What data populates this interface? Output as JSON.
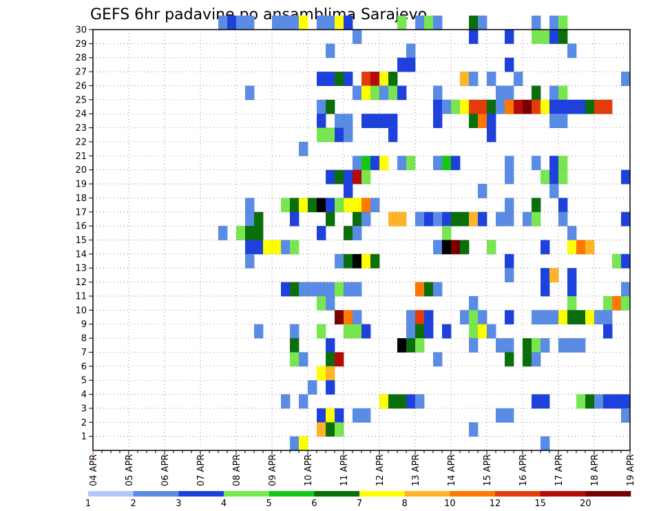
{
  "chart_data": {
    "type": "heatmap",
    "title": "GEFS 6hr padavine po ansamblima Sarajevo",
    "x_ticks": [
      "04 APR",
      "05 APR",
      "06 APR",
      "07 APR",
      "08 APR",
      "09 APR",
      "10 APR",
      "11 APR",
      "12 APR",
      "13 APR",
      "14 APR",
      "15 APR",
      "16 APR",
      "17 APR",
      "18 APR",
      "19 APR"
    ],
    "y_ticks": [
      1,
      2,
      3,
      4,
      5,
      6,
      7,
      8,
      9,
      10,
      11,
      12,
      13,
      14,
      15,
      16,
      17,
      18,
      19,
      20,
      21,
      22,
      23,
      24,
      25,
      26,
      27,
      28,
      29,
      30
    ],
    "xlim": [
      0,
      60
    ],
    "ylim": [
      0,
      30
    ],
    "x_time_step": "6hr",
    "grid": true,
    "legend": {
      "position": "bottom",
      "labels": [
        "1",
        "2",
        "3",
        "4",
        "5",
        "6",
        "7",
        "8",
        "10",
        "12",
        "15",
        "20"
      ],
      "colors": [
        "#b4c8f5",
        "#5a8ce6",
        "#1e41dc",
        "#78e650",
        "#14c814",
        "#0a6e0a",
        "#ffff00",
        "#ffb428",
        "#ff7800",
        "#e13c0a",
        "#b40a0a",
        "#780000"
      ]
    },
    "cells": [
      [
        30,
        14,
        1
      ],
      [
        30,
        15,
        2
      ],
      [
        30,
        16,
        1
      ],
      [
        30,
        17,
        1
      ],
      [
        30,
        20,
        1
      ],
      [
        30,
        21,
        1
      ],
      [
        30,
        22,
        1
      ],
      [
        30,
        23,
        6
      ],
      [
        30,
        25,
        1
      ],
      [
        30,
        26,
        1
      ],
      [
        30,
        27,
        6
      ],
      [
        30,
        28,
        2
      ],
      [
        30,
        34,
        3
      ],
      [
        30,
        36,
        1
      ],
      [
        30,
        37,
        3
      ],
      [
        30,
        38,
        1
      ],
      [
        30,
        42,
        5
      ],
      [
        30,
        43,
        1
      ],
      [
        30,
        49,
        1
      ],
      [
        30,
        51,
        1
      ],
      [
        30,
        52,
        3
      ],
      [
        29,
        29,
        1
      ],
      [
        29,
        42,
        2
      ],
      [
        29,
        46,
        2
      ],
      [
        29,
        49,
        3
      ],
      [
        29,
        50,
        3
      ],
      [
        29,
        51,
        2
      ],
      [
        29,
        52,
        5
      ],
      [
        28,
        26,
        1
      ],
      [
        28,
        35,
        1
      ],
      [
        28,
        53,
        1
      ],
      [
        27,
        34,
        2
      ],
      [
        27,
        35,
        2
      ],
      [
        27,
        46,
        2
      ],
      [
        26,
        25,
        2
      ],
      [
        26,
        26,
        2
      ],
      [
        26,
        27,
        5
      ],
      [
        26,
        28,
        2
      ],
      [
        26,
        30,
        9
      ],
      [
        26,
        31,
        10
      ],
      [
        26,
        32,
        6
      ],
      [
        26,
        33,
        5
      ],
      [
        26,
        41,
        7
      ],
      [
        26,
        42,
        1
      ],
      [
        26,
        44,
        1
      ],
      [
        26,
        47,
        1
      ],
      [
        26,
        59,
        1
      ],
      [
        25,
        17,
        1
      ],
      [
        25,
        29,
        1
      ],
      [
        25,
        30,
        6
      ],
      [
        25,
        31,
        3
      ],
      [
        25,
        32,
        1
      ],
      [
        25,
        33,
        3
      ],
      [
        25,
        34,
        2
      ],
      [
        25,
        38,
        1
      ],
      [
        25,
        45,
        1
      ],
      [
        25,
        46,
        1
      ],
      [
        25,
        49,
        5
      ],
      [
        25,
        51,
        1
      ],
      [
        25,
        52,
        3
      ],
      [
        24,
        25,
        1
      ],
      [
        24,
        26,
        5
      ],
      [
        24,
        38,
        2
      ],
      [
        24,
        39,
        1
      ],
      [
        24,
        40,
        3
      ],
      [
        24,
        41,
        6
      ],
      [
        24,
        42,
        9
      ],
      [
        24,
        43,
        9
      ],
      [
        24,
        44,
        5
      ],
      [
        24,
        45,
        1
      ],
      [
        24,
        46,
        8
      ],
      [
        24,
        47,
        10
      ],
      [
        24,
        48,
        11
      ],
      [
        24,
        49,
        9
      ],
      [
        24,
        50,
        6
      ],
      [
        24,
        51,
        2
      ],
      [
        24,
        52,
        2
      ],
      [
        24,
        53,
        2
      ],
      [
        24,
        54,
        2
      ],
      [
        24,
        55,
        5
      ],
      [
        24,
        56,
        9
      ],
      [
        24,
        57,
        9
      ],
      [
        23,
        25,
        2
      ],
      [
        23,
        27,
        1
      ],
      [
        23,
        28,
        1
      ],
      [
        23,
        30,
        2
      ],
      [
        23,
        31,
        2
      ],
      [
        23,
        32,
        2
      ],
      [
        23,
        33,
        2
      ],
      [
        23,
        38,
        2
      ],
      [
        23,
        42,
        5
      ],
      [
        23,
        43,
        8
      ],
      [
        23,
        44,
        2
      ],
      [
        23,
        51,
        1
      ],
      [
        23,
        52,
        1
      ],
      [
        22,
        25,
        3
      ],
      [
        22,
        26,
        3
      ],
      [
        22,
        27,
        2
      ],
      [
        22,
        28,
        1
      ],
      [
        22,
        33,
        2
      ],
      [
        22,
        44,
        2
      ],
      [
        21,
        23,
        1
      ],
      [
        20,
        29,
        1
      ],
      [
        20,
        30,
        4
      ],
      [
        20,
        31,
        2
      ],
      [
        20,
        32,
        6
      ],
      [
        20,
        34,
        1
      ],
      [
        20,
        35,
        3
      ],
      [
        20,
        38,
        1
      ],
      [
        20,
        39,
        4
      ],
      [
        20,
        40,
        2
      ],
      [
        20,
        46,
        1
      ],
      [
        20,
        49,
        1
      ],
      [
        20,
        51,
        2
      ],
      [
        20,
        52,
        3
      ],
      [
        19,
        26,
        2
      ],
      [
        19,
        27,
        5
      ],
      [
        19,
        28,
        2
      ],
      [
        19,
        29,
        10
      ],
      [
        19,
        30,
        3
      ],
      [
        19,
        46,
        1
      ],
      [
        19,
        50,
        3
      ],
      [
        19,
        51,
        2
      ],
      [
        19,
        52,
        3
      ],
      [
        19,
        59,
        2
      ],
      [
        18,
        28,
        2
      ],
      [
        18,
        43,
        1
      ],
      [
        18,
        51,
        1
      ],
      [
        17,
        17,
        1
      ],
      [
        17,
        21,
        3
      ],
      [
        17,
        22,
        5
      ],
      [
        17,
        23,
        6
      ],
      [
        17,
        24,
        5
      ],
      [
        17,
        25,
        12
      ],
      [
        17,
        26,
        2
      ],
      [
        17,
        27,
        3
      ],
      [
        17,
        28,
        6
      ],
      [
        17,
        29,
        6
      ],
      [
        17,
        30,
        8
      ],
      [
        17,
        31,
        1
      ],
      [
        17,
        46,
        1
      ],
      [
        17,
        49,
        5
      ],
      [
        17,
        52,
        2
      ],
      [
        16,
        17,
        1
      ],
      [
        16,
        18,
        5
      ],
      [
        16,
        22,
        2
      ],
      [
        16,
        26,
        5
      ],
      [
        16,
        29,
        5
      ],
      [
        16,
        30,
        1
      ],
      [
        16,
        33,
        7
      ],
      [
        16,
        34,
        7
      ],
      [
        16,
        36,
        1
      ],
      [
        16,
        37,
        2
      ],
      [
        16,
        38,
        1
      ],
      [
        16,
        39,
        2
      ],
      [
        16,
        40,
        5
      ],
      [
        16,
        41,
        5
      ],
      [
        16,
        42,
        7
      ],
      [
        16,
        43,
        2
      ],
      [
        16,
        45,
        1
      ],
      [
        16,
        46,
        1
      ],
      [
        16,
        48,
        1
      ],
      [
        16,
        49,
        3
      ],
      [
        16,
        52,
        1
      ],
      [
        16,
        59,
        2
      ],
      [
        15,
        14,
        1
      ],
      [
        15,
        16,
        3
      ],
      [
        15,
        17,
        5
      ],
      [
        15,
        18,
        5
      ],
      [
        15,
        25,
        2
      ],
      [
        15,
        28,
        5
      ],
      [
        15,
        29,
        1
      ],
      [
        15,
        39,
        3
      ],
      [
        15,
        53,
        1
      ],
      [
        14,
        17,
        2
      ],
      [
        14,
        18,
        2
      ],
      [
        14,
        19,
        6
      ],
      [
        14,
        20,
        6
      ],
      [
        14,
        21,
        1
      ],
      [
        14,
        22,
        3
      ],
      [
        14,
        38,
        1
      ],
      [
        14,
        39,
        12
      ],
      [
        14,
        40,
        11
      ],
      [
        14,
        41,
        5
      ],
      [
        14,
        44,
        3
      ],
      [
        14,
        50,
        2
      ],
      [
        14,
        53,
        6
      ],
      [
        14,
        54,
        8
      ],
      [
        14,
        55,
        7
      ],
      [
        13,
        17,
        1
      ],
      [
        13,
        27,
        1
      ],
      [
        13,
        28,
        5
      ],
      [
        13,
        29,
        12
      ],
      [
        13,
        30,
        6
      ],
      [
        13,
        31,
        5
      ],
      [
        13,
        46,
        2
      ],
      [
        13,
        58,
        3
      ],
      [
        13,
        59,
        2
      ],
      [
        12,
        46,
        1
      ],
      [
        12,
        50,
        2
      ],
      [
        12,
        51,
        7
      ],
      [
        12,
        53,
        2
      ],
      [
        11,
        21,
        2
      ],
      [
        11,
        22,
        5
      ],
      [
        11,
        23,
        1
      ],
      [
        11,
        24,
        1
      ],
      [
        11,
        25,
        1
      ],
      [
        11,
        26,
        1
      ],
      [
        11,
        27,
        3
      ],
      [
        11,
        28,
        1
      ],
      [
        11,
        29,
        1
      ],
      [
        11,
        36,
        8
      ],
      [
        11,
        37,
        5
      ],
      [
        11,
        38,
        1
      ],
      [
        11,
        50,
        2
      ],
      [
        11,
        53,
        2
      ],
      [
        11,
        59,
        1
      ],
      [
        10,
        25,
        3
      ],
      [
        10,
        26,
        1
      ],
      [
        10,
        42,
        1
      ],
      [
        10,
        53,
        3
      ],
      [
        10,
        57,
        3
      ],
      [
        10,
        58,
        8
      ],
      [
        10,
        59,
        3
      ],
      [
        9,
        27,
        11
      ],
      [
        9,
        28,
        8
      ],
      [
        9,
        29,
        1
      ],
      [
        9,
        35,
        1
      ],
      [
        9,
        36,
        9
      ],
      [
        9,
        37,
        2
      ],
      [
        9,
        41,
        1
      ],
      [
        9,
        42,
        3
      ],
      [
        9,
        43,
        1
      ],
      [
        9,
        46,
        2
      ],
      [
        9,
        49,
        1
      ],
      [
        9,
        50,
        1
      ],
      [
        9,
        51,
        1
      ],
      [
        9,
        52,
        6
      ],
      [
        9,
        53,
        5
      ],
      [
        9,
        54,
        5
      ],
      [
        9,
        55,
        6
      ],
      [
        9,
        56,
        1
      ],
      [
        9,
        57,
        1
      ],
      [
        8,
        18,
        1
      ],
      [
        8,
        22,
        1
      ],
      [
        8,
        25,
        3
      ],
      [
        8,
        28,
        3
      ],
      [
        8,
        29,
        3
      ],
      [
        8,
        30,
        2
      ],
      [
        8,
        35,
        1
      ],
      [
        8,
        36,
        5
      ],
      [
        8,
        37,
        2
      ],
      [
        8,
        39,
        2
      ],
      [
        8,
        42,
        3
      ],
      [
        8,
        43,
        6
      ],
      [
        8,
        44,
        1
      ],
      [
        8,
        57,
        2
      ],
      [
        7,
        22,
        5
      ],
      [
        7,
        26,
        2
      ],
      [
        7,
        34,
        12
      ],
      [
        7,
        35,
        5
      ],
      [
        7,
        36,
        3
      ],
      [
        7,
        42,
        1
      ],
      [
        7,
        45,
        1
      ],
      [
        7,
        46,
        1
      ],
      [
        7,
        48,
        5
      ],
      [
        7,
        49,
        3
      ],
      [
        7,
        50,
        1
      ],
      [
        7,
        52,
        1
      ],
      [
        7,
        53,
        1
      ],
      [
        7,
        54,
        1
      ],
      [
        6,
        22,
        3
      ],
      [
        6,
        23,
        1
      ],
      [
        6,
        26,
        5
      ],
      [
        6,
        27,
        10
      ],
      [
        6,
        38,
        1
      ],
      [
        6,
        46,
        5
      ],
      [
        6,
        48,
        5
      ],
      [
        6,
        49,
        1
      ],
      [
        5,
        25,
        6
      ],
      [
        5,
        26,
        7
      ],
      [
        4,
        24,
        1
      ],
      [
        4,
        26,
        2
      ],
      [
        3,
        21,
        1
      ],
      [
        3,
        23,
        1
      ],
      [
        3,
        32,
        6
      ],
      [
        3,
        33,
        5
      ],
      [
        3,
        34,
        5
      ],
      [
        3,
        35,
        2
      ],
      [
        3,
        36,
        1
      ],
      [
        3,
        49,
        2
      ],
      [
        3,
        50,
        2
      ],
      [
        3,
        54,
        3
      ],
      [
        3,
        55,
        5
      ],
      [
        3,
        56,
        1
      ],
      [
        3,
        57,
        2
      ],
      [
        3,
        58,
        2
      ],
      [
        3,
        59,
        2
      ],
      [
        2,
        25,
        2
      ],
      [
        2,
        26,
        6
      ],
      [
        2,
        27,
        2
      ],
      [
        2,
        29,
        1
      ],
      [
        2,
        30,
        1
      ],
      [
        2,
        45,
        1
      ],
      [
        2,
        46,
        1
      ],
      [
        2,
        59,
        1
      ],
      [
        1,
        25,
        7
      ],
      [
        1,
        26,
        5
      ],
      [
        1,
        27,
        3
      ],
      [
        1,
        42,
        1
      ],
      [
        0,
        22,
        1
      ],
      [
        0,
        23,
        6
      ],
      [
        0,
        50,
        1
      ]
    ]
  }
}
